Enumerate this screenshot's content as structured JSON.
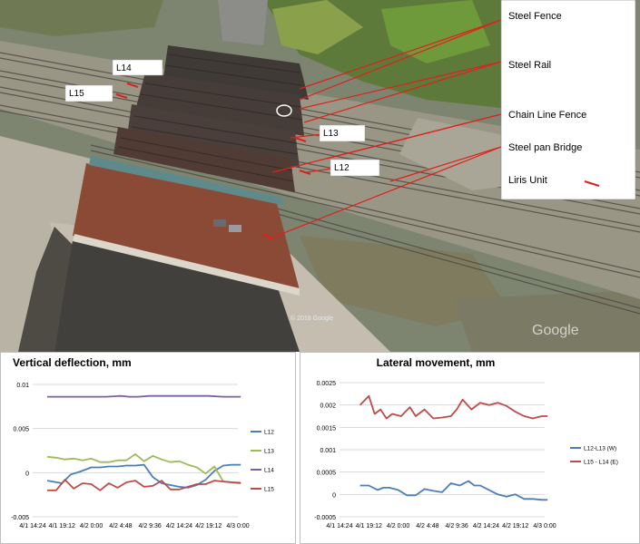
{
  "photo": {
    "labels": [
      {
        "id": "L14",
        "text": "L14"
      },
      {
        "id": "L15",
        "text": "L15"
      },
      {
        "id": "L13",
        "text": "L13"
      },
      {
        "id": "L12",
        "text": "L12"
      }
    ],
    "legend": [
      "Steel Fence",
      "Steel Rail",
      "Chain Line Fence",
      "Steel pan Bridge",
      "Liris Unit"
    ],
    "copyright": "© 2018 Google",
    "watermark": "Google"
  },
  "chart_data": [
    {
      "type": "line",
      "title": "Vertical deflection, mm",
      "x_tick_labels": [
        "4/1 14:24",
        "4/1 19:12",
        "4/2 0:00",
        "4/2 4:48",
        "4/2 9:36",
        "4/2 14:24",
        "4/2 19:12",
        "4/3 0:00"
      ],
      "ylim": [
        -0.005,
        0.01
      ],
      "y_ticks": [
        "-0.005",
        "0",
        "0.005",
        "0.01"
      ],
      "grid": true,
      "legend_position": "right",
      "series": [
        {
          "name": "L12",
          "color": "#4a7ebb",
          "x": [
            0.5,
            1.0,
            1.3,
            1.6,
            2.0,
            2.3,
            2.6,
            2.9,
            3.2,
            3.5,
            3.8,
            4.1,
            4.4,
            4.7,
            5.0,
            5.3,
            5.6,
            5.9,
            6.2,
            6.5,
            6.8,
            7.1
          ],
          "values": [
            -0.0009,
            -0.0012,
            -0.0002,
            0.0001,
            0.0006,
            0.0006,
            0.0007,
            0.0007,
            0.0008,
            0.0008,
            0.0009,
            -0.0005,
            -0.0012,
            -0.0014,
            -0.0016,
            -0.0017,
            -0.0014,
            -0.0008,
            0.0002,
            0.0008,
            0.0009,
            0.0009
          ]
        },
        {
          "name": "L13",
          "color": "#9bbb59",
          "x": [
            0.5,
            0.8,
            1.1,
            1.4,
            1.7,
            2.0,
            2.3,
            2.6,
            2.9,
            3.2,
            3.5,
            3.8,
            4.1,
            4.4,
            4.7,
            5.0,
            5.3,
            5.6,
            5.9,
            6.2,
            6.5,
            6.8,
            7.1
          ],
          "values": [
            0.0018,
            0.0017,
            0.0015,
            0.0016,
            0.0014,
            0.0016,
            0.0012,
            0.0012,
            0.0014,
            0.0014,
            0.0021,
            0.0013,
            0.0019,
            0.0015,
            0.0012,
            0.0013,
            0.0009,
            0.0006,
            -0.0001,
            0.0007,
            -0.001,
            -0.0011,
            -0.0011
          ]
        },
        {
          "name": "L14",
          "color": "#7d60a0",
          "x": [
            0.5,
            1.0,
            1.5,
            2.0,
            2.5,
            3.0,
            3.3,
            3.6,
            4.0,
            4.5,
            5.0,
            5.5,
            6.0,
            6.5,
            7.1
          ],
          "values": [
            0.0086,
            0.0086,
            0.0086,
            0.0086,
            0.0086,
            0.0087,
            0.0086,
            0.0086,
            0.0087,
            0.0087,
            0.0087,
            0.0087,
            0.0087,
            0.0086,
            0.0086
          ]
        },
        {
          "name": "L15",
          "color": "#be4b48",
          "x": [
            0.5,
            0.8,
            1.1,
            1.4,
            1.7,
            2.0,
            2.3,
            2.6,
            2.9,
            3.2,
            3.5,
            3.8,
            4.1,
            4.4,
            4.7,
            5.0,
            5.3,
            5.6,
            5.9,
            6.2,
            6.5,
            6.8,
            7.1
          ],
          "values": [
            -0.002,
            -0.002,
            -0.0008,
            -0.0018,
            -0.0012,
            -0.0013,
            -0.002,
            -0.0012,
            -0.0017,
            -0.0011,
            -0.0009,
            -0.0016,
            -0.0015,
            -0.0009,
            -0.0019,
            -0.0019,
            -0.0016,
            -0.0013,
            -0.0013,
            -0.0009,
            -0.001,
            -0.0011,
            -0.0012
          ]
        }
      ]
    },
    {
      "type": "line",
      "title": "Lateral movement, mm",
      "x_tick_labels": [
        "4/1 14:24",
        "4/1 19:12",
        "4/2 0:00",
        "4/2 4:48",
        "4/2 9:36",
        "4/2 14:24",
        "4/2 19:12",
        "4/3 0:00"
      ],
      "ylim": [
        -0.0005,
        0.0025
      ],
      "y_ticks": [
        "-0.0005",
        "0",
        "0.0005",
        "0.001",
        "0.0015",
        "0.002",
        "0.0025"
      ],
      "grid": true,
      "legend_position": "right",
      "series": [
        {
          "name": "L12-L13 (W)",
          "color": "#4a7ebb",
          "x": [
            0.7,
            1.0,
            1.3,
            1.5,
            1.7,
            2.0,
            2.3,
            2.6,
            2.9,
            3.2,
            3.5,
            3.8,
            4.1,
            4.4,
            4.6,
            4.8,
            5.1,
            5.4,
            5.7,
            6.0,
            6.3,
            6.6,
            6.9,
            7.1
          ],
          "values": [
            0.0002,
            0.0002,
            0.0001,
            0.00015,
            0.00015,
            0.0001,
            -2e-05,
            -2e-05,
            0.00012,
            8e-05,
            5e-05,
            0.00025,
            0.0002,
            0.0003,
            0.0002,
            0.0002,
            0.0001,
            0.0,
            -5e-05,
            0.0,
            -0.0001,
            -0.0001,
            -0.00012,
            -0.00012
          ]
        },
        {
          "name": "L15 - L14 (E)",
          "color": "#be4b48",
          "x": [
            0.7,
            1.0,
            1.2,
            1.4,
            1.6,
            1.8,
            2.1,
            2.4,
            2.6,
            2.9,
            3.2,
            3.5,
            3.8,
            4.0,
            4.2,
            4.5,
            4.8,
            5.1,
            5.4,
            5.7,
            6.0,
            6.3,
            6.6,
            6.9,
            7.1
          ],
          "values": [
            0.002,
            0.0022,
            0.0018,
            0.0019,
            0.0017,
            0.0018,
            0.00175,
            0.00195,
            0.00175,
            0.0019,
            0.0017,
            0.00172,
            0.00175,
            0.0019,
            0.00212,
            0.0019,
            0.00205,
            0.002,
            0.00205,
            0.00198,
            0.00185,
            0.00175,
            0.0017,
            0.00175,
            0.00175
          ]
        }
      ]
    }
  ]
}
